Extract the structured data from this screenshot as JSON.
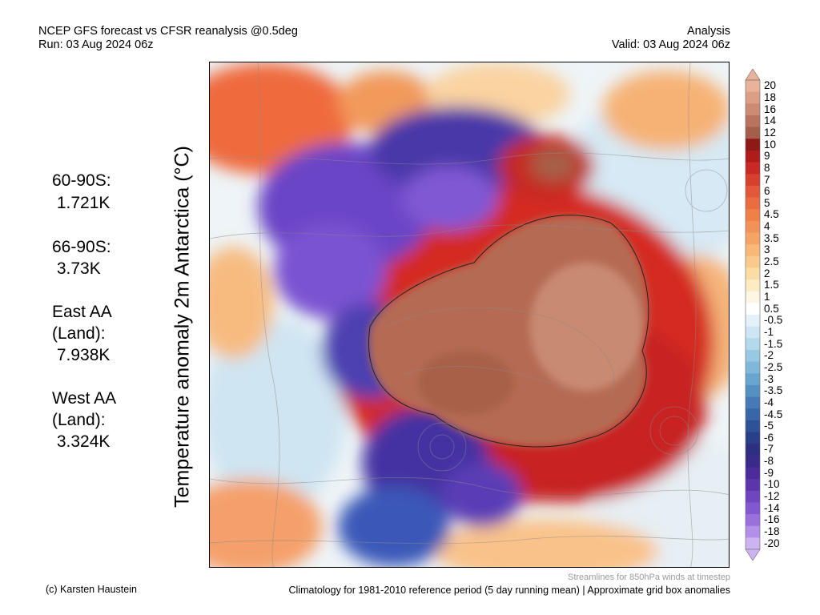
{
  "header": {
    "title": "NCEP GFS forecast vs CFSR reanalysis @0.5deg",
    "run": "Run: 03 Aug 2024 06z",
    "analysis": "Analysis",
    "valid": "Valid: 03 Aug 2024 06z"
  },
  "ylabel": "Temperature anomaly 2m Antarctica (°C)",
  "stats": [
    {
      "label": "60-90S:",
      "value": " 1.721K"
    },
    {
      "label": "66-90S:",
      "value": " 3.73K"
    },
    {
      "label": "East AA\n(Land):",
      "value": " 7.938K"
    },
    {
      "label": "West AA\n(Land):",
      "value": " 3.324K"
    }
  ],
  "colorbar": {
    "labels": [
      "20",
      "18",
      "16",
      "14",
      "12",
      "10",
      "9",
      "8",
      "7",
      "6",
      "5",
      "4.5",
      "4",
      "3.5",
      "3",
      "2.5",
      "2",
      "1.5",
      "1",
      "0.5",
      "-0.5",
      "-1",
      "-1.5",
      "-2",
      "-2.5",
      "-3",
      "-3.5",
      "-4",
      "-4.5",
      "-5",
      "-6",
      "-7",
      "-8",
      "-9",
      "-10",
      "-12",
      "-14",
      "-16",
      "-18",
      "-20"
    ],
    "colors": [
      "#e8b39a",
      "#dc9e84",
      "#cc8b72",
      "#b8745c",
      "#a35f4a",
      "#8e1a18",
      "#b01c1c",
      "#c92824",
      "#d8402e",
      "#e35838",
      "#ea6c40",
      "#ef8048",
      "#f29258",
      "#f5a466",
      "#f7b878",
      "#f9ca8c",
      "#fbdca4",
      "#fdecc2",
      "#fdf6e2",
      "#ffffff",
      "#e3f1f9",
      "#cce6f3",
      "#b3d9ec",
      "#98c9e3",
      "#7fb8da",
      "#68a5cf",
      "#5590c3",
      "#457ab6",
      "#3866a8",
      "#2e5298",
      "#2a3f8a",
      "#2d2f80",
      "#3a2a8a",
      "#4b2c9a",
      "#5c35ad",
      "#6f45c0",
      "#8258d0",
      "#9a70dd",
      "#b28fe8",
      "#ccb3f2"
    ]
  },
  "footer": {
    "streamlines": "Streamlines for 850hPa winds at timestep",
    "credit": "(c) Karsten Haustein",
    "climatology": "Climatology for 1981-2010 reference period (5 day running mean) | Approximate grid box anomalies"
  }
}
